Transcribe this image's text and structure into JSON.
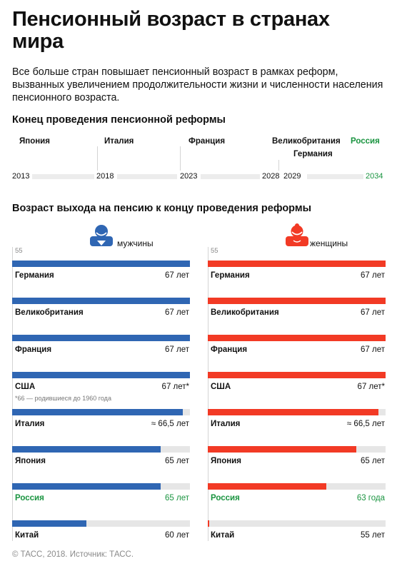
{
  "title": "Пенсионный возраст в странах мира",
  "lead": "Все больше стран повышает пенсионный возраст в рамках реформ, вызванных увеличением продолжительности жизни и численности населения пенсионного возраста.",
  "timeline": {
    "heading": "Конец проведения пенсионной реформы",
    "years": [
      "2013",
      "2018",
      "2023",
      "2028",
      "2029",
      "2034"
    ],
    "events": [
      {
        "country": "Япония",
        "year": 2013
      },
      {
        "country": "Италия",
        "year": 2018
      },
      {
        "country": "Франция",
        "year": 2023
      },
      {
        "country": "Великобритания",
        "year": 2028
      },
      {
        "country": "Германия",
        "year": 2029
      },
      {
        "country": "Россия",
        "year": 2034
      }
    ]
  },
  "colors": {
    "men": "#2f66b3",
    "women": "#f23a25",
    "russia": "#1a9440",
    "track": "#e6e6e6"
  },
  "chart_data": {
    "type": "bar",
    "title": "Возраст выхода на пенсию к концу проведения реформы",
    "axis_min_label": "55",
    "xlim": [
      55,
      67
    ],
    "categories": [
      "Германия",
      "Великобритания",
      "Франция",
      "США",
      "Италия",
      "Япония",
      "Россия",
      "Китай"
    ],
    "series": [
      {
        "name": "мужчины",
        "values": [
          67,
          67,
          67,
          67,
          66.5,
          65,
          65,
          60
        ],
        "labels": [
          "67 лет",
          "67 лет",
          "67 лет",
          "67 лет*",
          "≈ 66,5 лет",
          "65 лет",
          "65 лет",
          "60 лет"
        ]
      },
      {
        "name": "женщины",
        "values": [
          67,
          67,
          67,
          67,
          66.5,
          65,
          63,
          55
        ],
        "labels": [
          "67 лет",
          "67 лет",
          "67 лет",
          "67 лет*",
          "≈ 66,5 лет",
          "65 лет",
          "63 года",
          "55 лет"
        ]
      }
    ],
    "footnote": "*66 — родившиеся до 1960 года"
  },
  "source": "© ТАСС, 2018. Источник: ТАСС."
}
